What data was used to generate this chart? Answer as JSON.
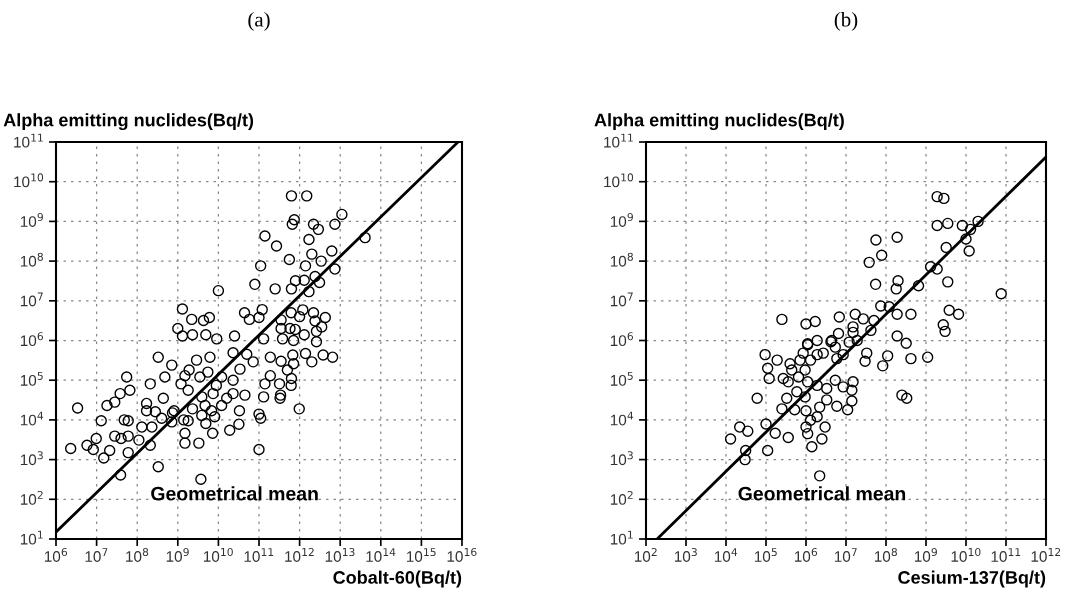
{
  "chart_data": [
    {
      "type": "scatter",
      "title": "(a)",
      "xlabel": "Cobalt-60(Bq/t)",
      "ylabel": "Alpha emitting nuclides(Bq/t)",
      "log": "xy",
      "grid": true,
      "xlim": [
        1000000.0,
        1e+16
      ],
      "ylim": [
        10,
        100000000000.0
      ],
      "xticks": [
        {
          "value": 1000000.0,
          "label": "10$^{6}$"
        },
        {
          "value": 10000000.0,
          "label": "10$^{7}$"
        },
        {
          "value": 100000000.0,
          "label": "10$^{8}$"
        },
        {
          "value": 1000000000.0,
          "label": "10$^{9}$"
        },
        {
          "value": 10000000000.0,
          "label": "10$^{10}$"
        },
        {
          "value": 100000000000.0,
          "label": "10$^{11}$"
        },
        {
          "value": 1000000000000.0,
          "label": "10$^{12}$"
        },
        {
          "value": 10000000000000.0,
          "label": "10$^{13}$"
        },
        {
          "value": 100000000000000.0,
          "label": "10$^{14}$"
        },
        {
          "value": 1000000000000000.0,
          "label": "10$^{15}$"
        },
        {
          "value": 1e+16,
          "label": "10$^{16}$"
        }
      ],
      "yticks": [
        {
          "value": 10,
          "label": "10$^{1}$"
        },
        {
          "value": 100,
          "label": "10$^{2}$"
        },
        {
          "value": 1000.0,
          "label": "10$^{3}$"
        },
        {
          "value": 10000.0,
          "label": "10$^{4}$"
        },
        {
          "value": 100000.0,
          "label": "10$^{5}$"
        },
        {
          "value": 1000000.0,
          "label": "10$^{6}$"
        },
        {
          "value": 10000000.0,
          "label": "10$^{7}$"
        },
        {
          "value": 100000000.0,
          "label": "10$^{8}$"
        },
        {
          "value": 1000000000.0,
          "label": "10$^{9}$"
        },
        {
          "value": 10000000000.0,
          "label": "10$^{10}$"
        },
        {
          "value": 100000000000.0,
          "label": "10$^{11}$"
        }
      ],
      "annotations": [
        "Geometrical mean"
      ],
      "series": [
        {
          "color": "#000000",
          "marker": "circle",
          "x": [
            630000000000.0,
            1500000000000.0,
            11000000000000.0,
            7400000000000.0,
            740000000000.0,
            660000000000.0,
            2200000000000.0,
            2900000000000.0,
            1700000000000.0,
            140000000000.0,
            41000000000000.0,
            270000000000.0,
            6200000000000.0,
            2000000000000.0,
            560000000000.0,
            3400000000000.0,
            1400000000000.0,
            110000000000.0,
            7400000000000.0,
            2400000000000.0,
            1300000000000.0,
            790000000000.0,
            3100000000000.0,
            79000000000.0,
            250000000000.0,
            630000000000.0,
            1700000000000.0,
            10000000000.0,
            1300000000.0,
            44000000000.0,
            120000000000.0,
            58000000000.0,
            100000000000.0,
            350000000000.0,
            620000000000.0,
            1200000000000.0,
            2200000000000.0,
            4300000000000.0,
            1000000000000.0,
            2400000000000.0,
            580000000000.0,
            780000000000.0,
            3500000000000.0,
            350000000000.0,
            1300000000000.0,
            2600000000000.0,
            380000000000.0,
            710000000000.0,
            2600000000000.0,
            2200000000.0,
            4300000000.0,
            6000000000.0,
            1000000000.0,
            1300000000.0,
            2300000000.0,
            4900000000.0,
            9100000000.0,
            25000000000.0,
            130000000000.0,
            23000000000.0,
            50000000000.0,
            72000000000.0,
            190000000000.0,
            350000000000.0,
            680000000000.0,
            1400000000000.0,
            2000000000000.0,
            3800000000000.0,
            6500000000000.0,
            500000000000.0,
            710000000000.0,
            190000000000.0,
            320000000000.0,
            630000000000.0,
            620000000000.0,
            140000000000.0,
            130000000000.0,
            340000000000.0,
            330000000000.0,
            980000000000.0,
            100000000000.0,
            110000000000.0,
            100000000000.0,
            33000000000.0,
            19000000000.0,
            32000000000.0,
            7200000000.0,
            3700000000.0,
            3300000000.0,
            1500000000.0,
            1500000000.0,
            1800000000.0,
            810000000.0,
            330000000.0,
            39000000.0,
            60000000.0,
            110000000.0,
            210000000.0,
            230000000.0,
            400000000.0,
            170000000.0,
            170000000.0,
            280000000.0,
            440000000.0,
            210000000.0,
            330000000.0,
            480000000.0,
            710000000.0,
            1200000000.0,
            1900000000.0,
            2900000000.0,
            1800000000.0,
            2300000000.0,
            3900000000.0,
            4700000000.0,
            3900000000.0,
            4900000000.0,
            8100000000.0,
            6800000000.0,
            6200000000.0,
            3500000000.0,
            5500000000.0,
            7400000000.0,
            8900000000.0,
            12000000000.0,
            12000000000.0,
            23000000000.0,
            23000000000.0,
            45000000000.0,
            34000000000.0,
            16000000000.0,
            1500000000.0,
            55000000.0,
            66000000.0,
            38000000.0,
            28000000.0,
            18000000.0,
            48000000.0,
            60000000.0,
            13000000.0,
            3400000.0,
            2300000.0,
            5800000.0,
            9800000.0,
            8300000.0,
            15000000.0,
            21000000.0,
            28000000.0,
            40000000.0,
            60000000.0,
            130000000.0,
            710000000.0,
            1400000000.0,
            740000000.0
          ],
          "values": [
            4400000000.0,
            4400000000.0,
            1500000000.0,
            850000000.0,
            1100000000.0,
            850000000.0,
            850000000.0,
            630000000.0,
            350000000.0,
            430000000.0,
            390000000.0,
            240000000.0,
            180000000.0,
            150000000.0,
            110000000.0,
            100000000.0,
            76000000.0,
            76000000.0,
            63000000.0,
            41000000.0,
            33000000.0,
            32000000.0,
            29000000.0,
            26000000.0,
            20000000.0,
            20000000.0,
            17000000.0,
            18000000.0,
            6200000.0,
            5000000.0,
            6000000.0,
            3400000.0,
            3800000.0,
            3300000.0,
            5000000.0,
            5900000.0,
            5000000.0,
            3800000.0,
            4000000.0,
            3100000.0,
            2000000.0,
            1900000.0,
            2200000.0,
            2000000.0,
            1400000.0,
            1700000.0,
            1100000.0,
            1000000.0,
            930000.0,
            3400000.0,
            3200000.0,
            3800000.0,
            2000000.0,
            1300000.0,
            1400000.0,
            1400000.0,
            1100000.0,
            1300000.0,
            1100000.0,
            490000.0,
            450000.0,
            290000.0,
            380000.0,
            300000.0,
            430000.0,
            470000.0,
            290000.0,
            430000.0,
            380000.0,
            180000.0,
            260000.0,
            130000.0,
            81000.0,
            110000.0,
            74000.0,
            81000.0,
            38000.0,
            42000.0,
            35000.0,
            19000.0,
            14000.0,
            11000.0,
            1800.0,
            17000.0,
            5500.0,
            7800.0,
            4600.0,
            320,
            2600.0,
            2600.0,
            4600.0,
            9500.0,
            17000.0,
            660,
            410,
            1500.0,
            3100.0,
            2300.0,
            6600.0,
            11000.0,
            26000.0,
            17000.0,
            16000.0,
            35000.0,
            81000.0,
            380000.0,
            120000.0,
            240000.0,
            81000.0,
            180000.0,
            320000.0,
            56000.0,
            19000.0,
            38000.0,
            23000.0,
            13000.0,
            8100.0,
            12000.0,
            17000.0,
            380000.0,
            120000.0,
            160000.0,
            46000.0,
            74000.0,
            23000.0,
            120000.0,
            100000.0,
            46000.0,
            42000.0,
            190000.0,
            35000.0,
            130000.0,
            120000.0,
            56000.0,
            46000.0,
            28000.0,
            23000.0,
            10000.0,
            9500.0,
            9500.0,
            20000.0,
            1900.0,
            2300.0,
            3400.0,
            1800.0,
            1100.0,
            1700.0,
            3900.0,
            3400.0,
            3900.0,
            6600.0,
            8900.0,
            10000.0,
            15000.0
          ]
        },
        {
          "type": "line",
          "color": "#000000",
          "x": [
            1000000.0,
            8000000000000000.0
          ],
          "values": [
            15,
            100000000000.0
          ]
        }
      ]
    },
    {
      "type": "scatter",
      "title": "(b)",
      "xlabel": "Cesium-137(Bq/t)",
      "ylabel": "Alpha emitting nuclides(Bq/t)",
      "log": "xy",
      "grid": true,
      "xlim": [
        100,
        1000000000000.0
      ],
      "ylim": [
        10,
        100000000000.0
      ],
      "xticks": [
        {
          "value": 100,
          "label": "10$^{2}$"
        },
        {
          "value": 1000.0,
          "label": "10$^{3}$"
        },
        {
          "value": 10000.0,
          "label": "10$^{4}$"
        },
        {
          "value": 100000.0,
          "label": "10$^{5}$"
        },
        {
          "value": 1000000.0,
          "label": "10$^{6}$"
        },
        {
          "value": 10000000.0,
          "label": "10$^{7}$"
        },
        {
          "value": 100000000.0,
          "label": "10$^{8}$"
        },
        {
          "value": 1000000000.0,
          "label": "10$^{9}$"
        },
        {
          "value": 10000000000.0,
          "label": "10$^{10}$"
        },
        {
          "value": 100000000000.0,
          "label": "10$^{11}$"
        },
        {
          "value": 1000000000000.0,
          "label": "10$^{12}$"
        }
      ],
      "yticks": [
        {
          "value": 10,
          "label": "10$^{1}$"
        },
        {
          "value": 100,
          "label": "10$^{2}$"
        },
        {
          "value": 1000.0,
          "label": "10$^{3}$"
        },
        {
          "value": 10000.0,
          "label": "10$^{4}$"
        },
        {
          "value": 100000.0,
          "label": "10$^{5}$"
        },
        {
          "value": 1000000.0,
          "label": "10$^{6}$"
        },
        {
          "value": 10000000.0,
          "label": "10$^{7}$"
        },
        {
          "value": 100000000.0,
          "label": "10$^{8}$"
        },
        {
          "value": 1000000000.0,
          "label": "10$^{9}$"
        },
        {
          "value": 10000000000.0,
          "label": "10$^{10}$"
        },
        {
          "value": 100000000000.0,
          "label": "10$^{11}$"
        }
      ],
      "annotations": [
        "Geometrical mean"
      ],
      "series": [
        {
          "color": "#000000",
          "marker": "circle",
          "x": [
            1900000000.0,
            2800000000.0,
            1900000000.0,
            3500000000.0,
            8100000000.0,
            20000000000.0,
            13000000000.0,
            10000000000.0,
            3200000000.0,
            12000000000.0,
            1300000000.0,
            1900000000.0,
            3500000000.0,
            76000000000.0,
            650000000.0,
            190000000.0,
            56000000.0,
            38000000.0,
            78000000.0,
            55000000.0,
            200000000.0,
            180000000.0,
            74000000.0,
            120000000.0,
            190000000.0,
            420000000.0,
            3800000000.0,
            6500000000.0,
            2700000000.0,
            3000000000.0,
            250000.0,
            1000000.0,
            1700000.0,
            6800000.0,
            17000000.0,
            27000000.0,
            6500000.0,
            15000000.0,
            15000000.0,
            42000000.0,
            50000000.0,
            190000000.0,
            320000000.0,
            4200000.0,
            1900000.0,
            1100000.0,
            12000000.0,
            95000.0,
            190000.0,
            110000.0,
            120000.0,
            270000.0,
            400000.0,
            440000.0,
            360000.0,
            650000.0,
            710000.0,
            850000.0,
            1100000.0,
            1300000.0,
            1900000.0,
            2700000.0,
            4400000.0,
            5400000.0,
            5900000.0,
            8500000.0,
            19000000.0,
            33000000.0,
            30000000.0,
            83000000.0,
            110000000.0,
            420000000.0,
            1100000000.0,
            950000.0,
            1100000.0,
            1900000.0,
            3300000.0,
            5400000.0,
            8500000.0,
            14000000.0,
            15000000.0,
            14000000.0,
            11000000.0,
            5900000.0,
            3300000.0,
            2200000.0,
            1900000.0,
            1300000.0,
            1000000.0,
            1100000.0,
            1400000.0,
            2500000.0,
            3000000.0,
            2200000.0,
            1000000.0,
            950000.0,
            590000.0,
            520000.0,
            330000.0,
            250000.0,
            360000.0,
            170000.0,
            100000.0,
            110000.0,
            60000.0,
            22000.0,
            35000.0,
            13000.0,
            31000.0,
            30000.0,
            250000000.0,
            330000000.0
          ],
          "values": [
            4200000000.0,
            3800000000.0,
            790000000.0,
            890000000.0,
            790000000.0,
            1000000000.0,
            630000000.0,
            360000000.0,
            220000000.0,
            180000000.0,
            72000000.0,
            63000000.0,
            30000000.0,
            15000000.0,
            24000000.0,
            400000000.0,
            340000000.0,
            93000000.0,
            140000000.0,
            26000000.0,
            32000000.0,
            20000000.0,
            7400000.0,
            7100000.0,
            4600000.0,
            4600000.0,
            5800000.0,
            4600000.0,
            2500000.0,
            1700000.0,
            3400000.0,
            2600000.0,
            3000000.0,
            3900000.0,
            4600000.0,
            3500000.0,
            1500000.0,
            2200000.0,
            1600000.0,
            1800000.0,
            3200000.0,
            1300000.0,
            850000.0,
            930000.0,
            1000000.0,
            830000.0,
            910000.0,
            440000.0,
            320000.0,
            200000.0,
            110000.0,
            110000.0,
            260000.0,
            180000.0,
            91000.0,
            120000.0,
            320000.0,
            480000.0,
            780000.0,
            320000.0,
            440000.0,
            480000.0,
            1000000.0,
            680000.0,
            350000.0,
            440000.0,
            1000000.0,
            480000.0,
            300000.0,
            230000.0,
            410000.0,
            350000.0,
            380000.0,
            180000.0,
            91000.0,
            74000.0,
            62000.0,
            100000.0,
            68000.0,
            56000.0,
            91000.0,
            30000.0,
            18000.0,
            22000.0,
            32000.0,
            21000.0,
            12000.0,
            9800.0,
            6600.0,
            4500.0,
            2100.0,
            3300.0,
            6600.0,
            390,
            17000.0,
            38000.0,
            51000.0,
            18000.0,
            35000.0,
            19000.0,
            3600.0,
            4600.0,
            7900.0,
            1700.0,
            35000.0,
            6600.0,
            5200.0,
            3300.0,
            1700.0,
            1000.0,
            42000.0,
            35000.0
          ]
        },
        {
          "type": "line",
          "color": "#000000",
          "x": [
            190,
            1000000000000.0
          ],
          "values": [
            10,
            42000000000.0
          ]
        }
      ]
    }
  ]
}
